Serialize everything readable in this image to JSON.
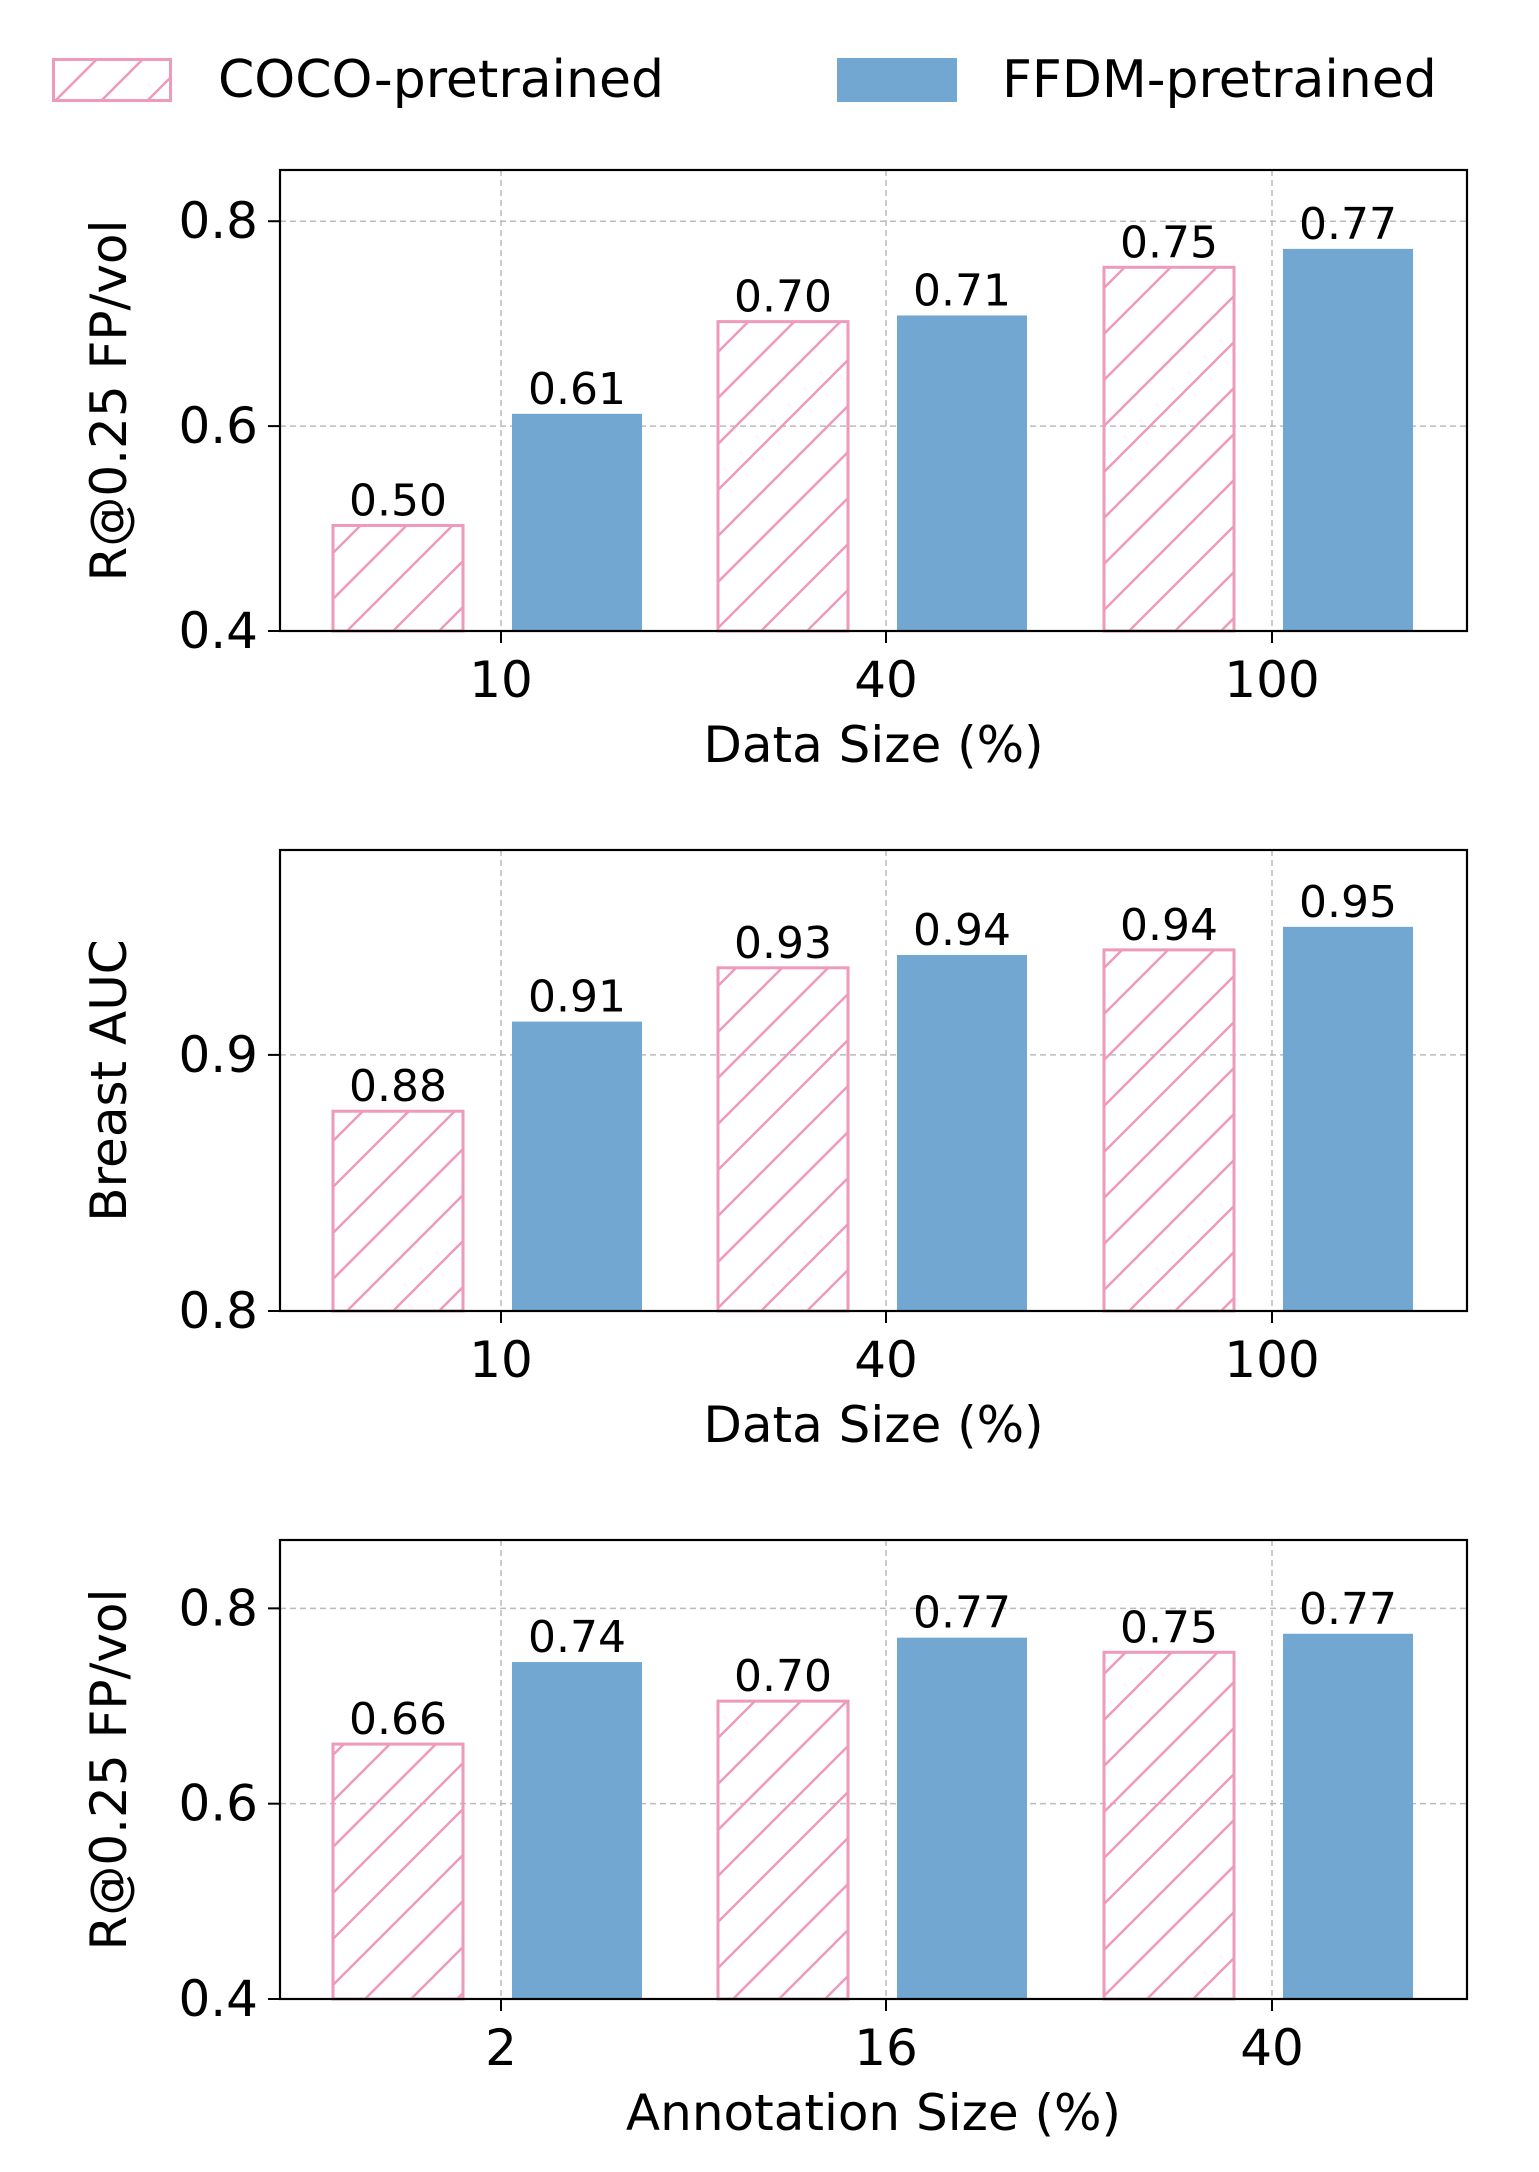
{
  "legend": {
    "series_a": "COCO-pretrained",
    "series_b": "FFDM-pretrained"
  },
  "colors": {
    "series_a_edge": "#EE9ABB",
    "series_b_fill": "#71A7D1",
    "grid": "#BBBBBB"
  },
  "chart_data": [
    {
      "type": "bar",
      "ylabel": "R@0.25 FP/vol",
      "xlabel": "Data Size (%)",
      "categories": [
        "10",
        "40",
        "100"
      ],
      "ylim": [
        0.4,
        0.85
      ],
      "yticks": [
        "0.4",
        "0.6",
        "0.8"
      ],
      "grid": true,
      "series": [
        {
          "name": "COCO-pretrained",
          "values": [
            0.503,
            0.702,
            0.755
          ],
          "labels": [
            "0.50",
            "0.70",
            "0.75"
          ]
        },
        {
          "name": "FFDM-pretrained",
          "values": [
            0.612,
            0.708,
            0.773
          ],
          "labels": [
            "0.61",
            "0.71",
            "0.77"
          ]
        }
      ]
    },
    {
      "type": "bar",
      "ylabel": "Breast AUC",
      "xlabel": "Data Size (%)",
      "categories": [
        "10",
        "40",
        "100"
      ],
      "ylim": [
        0.8,
        0.98
      ],
      "yticks": [
        "0.8",
        "0.9"
      ],
      "grid": true,
      "series": [
        {
          "name": "COCO-pretrained",
          "values": [
            0.878,
            0.934,
            0.941
          ],
          "labels": [
            "0.88",
            "0.93",
            "0.94"
          ]
        },
        {
          "name": "FFDM-pretrained",
          "values": [
            0.913,
            0.939,
            0.95
          ],
          "labels": [
            "0.91",
            "0.94",
            "0.95"
          ]
        }
      ]
    },
    {
      "type": "bar",
      "ylabel": "R@0.25 FP/vol",
      "xlabel": "Annotation Size (%)",
      "categories": [
        "2",
        "16",
        "40"
      ],
      "ylim": [
        0.4,
        0.87
      ],
      "yticks": [
        "0.4",
        "0.6",
        "0.8"
      ],
      "grid": true,
      "series": [
        {
          "name": "COCO-pretrained",
          "values": [
            0.661,
            0.705,
            0.755
          ],
          "labels": [
            "0.66",
            "0.70",
            "0.75"
          ]
        },
        {
          "name": "FFDM-pretrained",
          "values": [
            0.745,
            0.77,
            0.774
          ],
          "labels": [
            "0.74",
            "0.77",
            "0.77"
          ]
        }
      ]
    }
  ]
}
